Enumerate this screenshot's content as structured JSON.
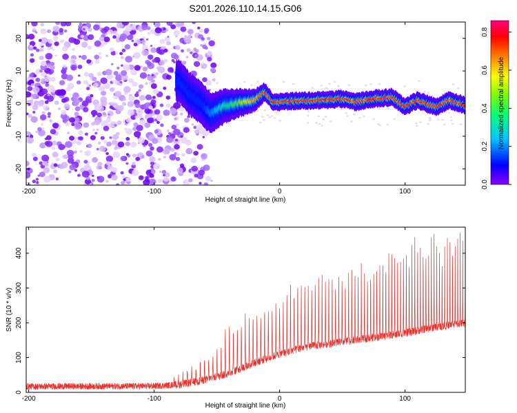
{
  "title": "S201.2026.110.14.15.G06",
  "chart_data": [
    {
      "type": "heatmap",
      "xlabel": "Height of straight line (km)",
      "ylabel": "Frequency (Hz)",
      "xlim": [
        -202,
        148
      ],
      "ylim": [
        -25,
        25
      ],
      "xticks": [
        -200,
        -100,
        0,
        100
      ],
      "yticks": [
        -20,
        -10,
        0,
        10,
        20
      ],
      "colorbar": {
        "label": "Normalized spectral amplitude",
        "range": [
          0.0,
          0.86
        ],
        "ticks": [
          0.0,
          0.2,
          0.4,
          0.6,
          0.8
        ],
        "tick_labels": [
          "0.0",
          "0.2",
          "0.4",
          "0.6",
          "0.8"
        ],
        "colormap": [
          "#8a00ff",
          "#0000ff",
          "#00c8ff",
          "#00ff80",
          "#80ff00",
          "#ffff00",
          "#ff8000",
          "#ff0000",
          "#ff0080"
        ]
      },
      "signal_ridge": [
        {
          "x": -80,
          "y": 7
        },
        {
          "x": -72,
          "y": 3
        },
        {
          "x": -62,
          "y": 0
        },
        {
          "x": -55,
          "y": -3
        },
        {
          "x": -45,
          "y": -1
        },
        {
          "x": -35,
          "y": 0
        },
        {
          "x": -20,
          "y": 1
        },
        {
          "x": -12,
          "y": 3.5
        },
        {
          "x": -5,
          "y": 0.5
        },
        {
          "x": 10,
          "y": 0.8
        },
        {
          "x": 30,
          "y": 1
        },
        {
          "x": 50,
          "y": 1.4
        },
        {
          "x": 60,
          "y": 0.5
        },
        {
          "x": 75,
          "y": 1.5
        },
        {
          "x": 90,
          "y": 2
        },
        {
          "x": 100,
          "y": -1
        },
        {
          "x": 110,
          "y": 1
        },
        {
          "x": 125,
          "y": -1
        },
        {
          "x": 135,
          "y": 1
        },
        {
          "x": 148,
          "y": -0.5
        }
      ]
    },
    {
      "type": "line",
      "xlabel": "Height of straight line (km)",
      "ylabel": "SNR (10 * v/v)",
      "xlim": [
        -202,
        148
      ],
      "ylim": [
        0,
        475
      ],
      "xticks": [
        -200,
        -100,
        0,
        100
      ],
      "yticks": [
        0,
        100,
        200,
        300,
        400
      ],
      "series": [
        {
          "name": "SNR",
          "color": "#e8302c",
          "baseline": [
            {
              "x": -202,
              "y": 17
            },
            {
              "x": -100,
              "y": 18
            },
            {
              "x": -80,
              "y": 22
            },
            {
              "x": -60,
              "y": 35
            },
            {
              "x": -40,
              "y": 55
            },
            {
              "x": -20,
              "y": 85
            },
            {
              "x": 0,
              "y": 110
            },
            {
              "x": 20,
              "y": 130
            },
            {
              "x": 40,
              "y": 140
            },
            {
              "x": 60,
              "y": 150
            },
            {
              "x": 80,
              "y": 160
            },
            {
              "x": 100,
              "y": 170
            },
            {
              "x": 120,
              "y": 185
            },
            {
              "x": 148,
              "y": 200
            }
          ],
          "peak_envelope": [
            {
              "x": -202,
              "y": 30
            },
            {
              "x": -100,
              "y": 30
            },
            {
              "x": -80,
              "y": 50
            },
            {
              "x": -60,
              "y": 100
            },
            {
              "x": -50,
              "y": 150
            },
            {
              "x": -35,
              "y": 220
            },
            {
              "x": -20,
              "y": 250
            },
            {
              "x": -10,
              "y": 250
            },
            {
              "x": 0,
              "y": 270
            },
            {
              "x": 10,
              "y": 320
            },
            {
              "x": 20,
              "y": 340
            },
            {
              "x": 40,
              "y": 350
            },
            {
              "x": 60,
              "y": 370
            },
            {
              "x": 80,
              "y": 400
            },
            {
              "x": 90,
              "y": 440
            },
            {
              "x": 100,
              "y": 440
            },
            {
              "x": 110,
              "y": 460
            },
            {
              "x": 130,
              "y": 470
            },
            {
              "x": 148,
              "y": 470
            }
          ]
        }
      ]
    }
  ]
}
